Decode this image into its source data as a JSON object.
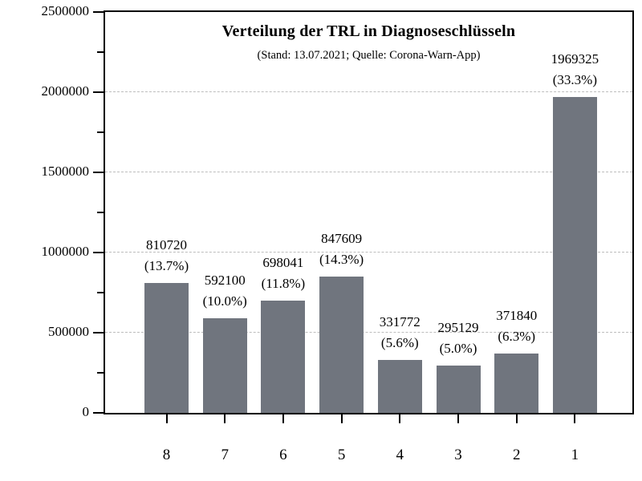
{
  "chart_data": {
    "type": "bar",
    "title": "Verteilung der TRL in Diagnoseschlüsseln",
    "subtitle": "(Stand: 13.07.2021; Quelle: Corona-Warn-App)",
    "categories": [
      "8",
      "7",
      "6",
      "5",
      "4",
      "3",
      "2",
      "1"
    ],
    "values": [
      810720,
      592100,
      698041,
      847609,
      331772,
      295129,
      371840,
      1969325
    ],
    "value_labels": [
      "810720",
      "592100",
      "698041",
      "847609",
      "331772",
      "295129",
      "371840",
      "1969325"
    ],
    "percent_labels": [
      "(13.7%)",
      "(10.0%)",
      "(11.8%)",
      "(14.3%)",
      "(5.6%)",
      "(5.0%)",
      "(6.3%)",
      "(33.3%)"
    ],
    "xlabel": "",
    "ylabel": "",
    "ylim": [
      0,
      2500000
    ],
    "y_major_ticks": [
      0,
      500000,
      1000000,
      1500000,
      2000000,
      2500000
    ],
    "y_major_tick_labels": [
      "0",
      "500000",
      "1000000",
      "1500000",
      "2000000",
      "2500000"
    ],
    "y_minor_tick_step": 250000,
    "grid": "horizontal dashed at major y ticks",
    "legend": "none",
    "bar_color": "#70757e",
    "gridline_color": "#bdbdbd",
    "frame_color": "#000000",
    "text_color": "#000000"
  }
}
